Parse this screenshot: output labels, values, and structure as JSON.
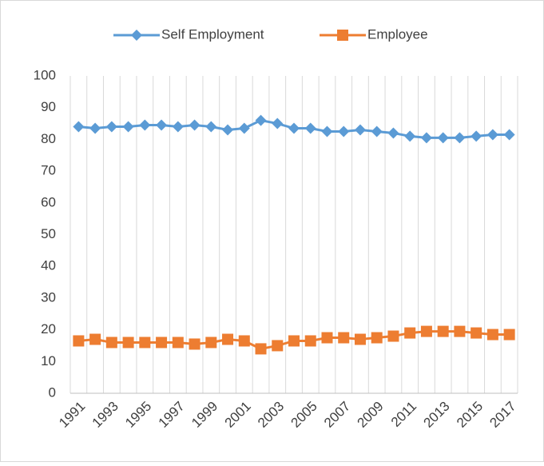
{
  "chart_data": {
    "type": "line",
    "categories": [
      1991,
      null,
      1993,
      null,
      1995,
      null,
      1997,
      null,
      1999,
      null,
      2001,
      null,
      2003,
      null,
      2005,
      null,
      2007,
      null,
      2009,
      null,
      2011,
      null,
      2013,
      null,
      2015,
      null,
      2017
    ],
    "series": [
      {
        "name": "Self Employment",
        "color": "#5b9bd5",
        "marker": "diamond",
        "values": [
          84,
          83.5,
          84,
          84,
          84.5,
          84.5,
          84,
          84.5,
          84,
          83,
          83.5,
          86,
          85,
          83.5,
          83.5,
          82.5,
          82.5,
          83,
          82.5,
          82,
          81,
          80.5,
          80.5,
          80.5,
          81,
          81.5,
          81.5
        ]
      },
      {
        "name": "Employee",
        "color": "#ed7d31",
        "marker": "square",
        "values": [
          16.5,
          17,
          16,
          16,
          16,
          16,
          16,
          15.5,
          16,
          17,
          16.5,
          14,
          15,
          16.5,
          16.5,
          17.5,
          17.5,
          17,
          17.5,
          18,
          19,
          19.5,
          19.5,
          19.5,
          19,
          18.5,
          18.5
        ]
      }
    ],
    "ylim": [
      0,
      100
    ],
    "yticks": [
      0,
      10,
      20,
      30,
      40,
      50,
      60,
      70,
      80,
      90,
      100
    ],
    "grid": true,
    "legend": "top"
  }
}
